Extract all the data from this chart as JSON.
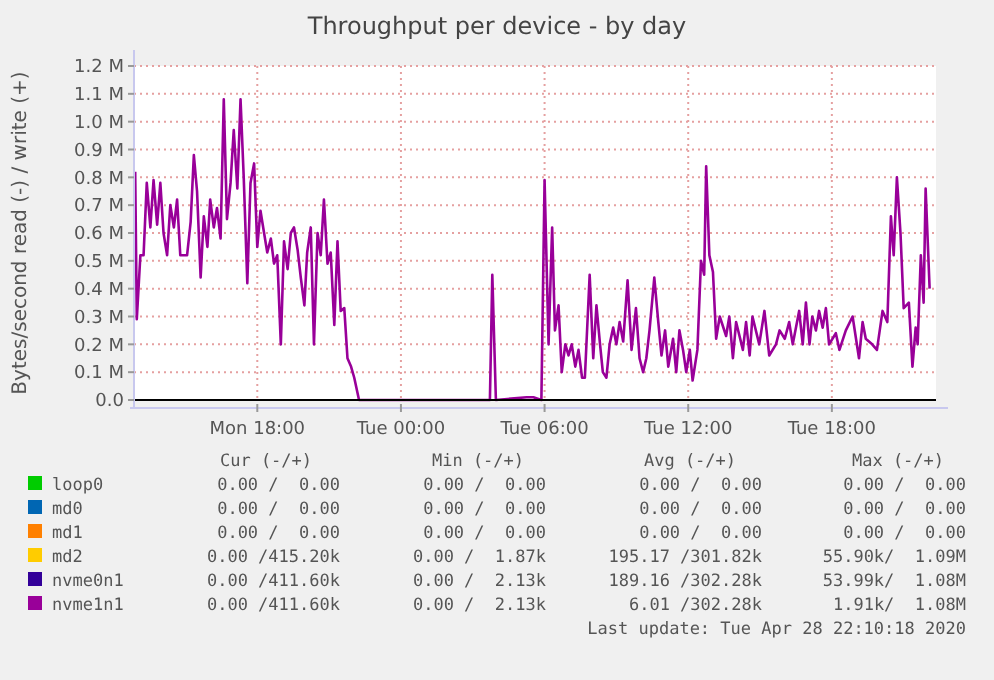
{
  "chart_data": {
    "type": "line",
    "title": "Throughput per device - by day",
    "ylabel": "Bytes/second read (-) / write (+)",
    "xlim": [
      "2020-04-27T12:51",
      "2020-04-28T22:21"
    ],
    "ylim": [
      0,
      1200000
    ],
    "xticks": [
      {
        "value": "2020-04-27T18:00",
        "label": "Mon 18:00"
      },
      {
        "value": "2020-04-28T00:00",
        "label": "Tue 00:00"
      },
      {
        "value": "2020-04-28T06:00",
        "label": "Tue 06:00"
      },
      {
        "value": "2020-04-28T12:00",
        "label": "Tue 12:00"
      },
      {
        "value": "2020-04-28T18:00",
        "label": "Tue 18:00"
      }
    ],
    "yticks": [
      {
        "value": 0,
        "label": "0.0"
      },
      {
        "value": 100000,
        "label": "0.1 M"
      },
      {
        "value": 200000,
        "label": "0.2 M"
      },
      {
        "value": 300000,
        "label": "0.3 M"
      },
      {
        "value": 400000,
        "label": "0.4 M"
      },
      {
        "value": 500000,
        "label": "0.5 M"
      },
      {
        "value": 600000,
        "label": "0.6 M"
      },
      {
        "value": 700000,
        "label": "0.7 M"
      },
      {
        "value": 800000,
        "label": "0.8 M"
      },
      {
        "value": 900000,
        "label": "0.9 M"
      },
      {
        "value": 1000000,
        "label": "1.0 M"
      },
      {
        "value": 1100000,
        "label": "1.1 M"
      },
      {
        "value": 1200000,
        "label": "1.2 M"
      }
    ],
    "grid": true,
    "legend": "bottom",
    "marker": "none",
    "line_style": "solid",
    "series": [
      {
        "name": "loop0",
        "color": "#00cc00"
      },
      {
        "name": "md0",
        "color": "#0066b3"
      },
      {
        "name": "md1",
        "color": "#ff8000"
      },
      {
        "name": "md2",
        "color": "#ffcc00"
      },
      {
        "name": "nvme0n1",
        "color": "#330099"
      },
      {
        "name": "nvme1n1",
        "color": "#990099",
        "x": [
          "2020-04-27T12:54",
          "2020-04-27T12:58",
          "2020-04-27T13:07",
          "2020-04-27T13:15",
          "2020-04-27T13:23",
          "2020-04-27T13:32",
          "2020-04-27T13:40",
          "2020-04-27T13:49",
          "2020-04-27T13:57",
          "2020-04-27T14:05",
          "2020-04-27T14:14",
          "2020-04-27T14:22",
          "2020-04-27T14:31",
          "2020-04-27T14:39",
          "2020-04-27T14:47",
          "2020-04-27T15:04",
          "2020-04-27T15:13",
          "2020-04-27T15:21",
          "2020-04-27T15:29",
          "2020-04-27T15:38",
          "2020-04-27T15:46",
          "2020-04-27T15:55",
          "2020-04-27T16:02",
          "2020-04-27T16:11",
          "2020-04-27T16:19",
          "2020-04-27T16:28",
          "2020-04-27T16:36",
          "2020-04-27T16:44",
          "2020-04-27T16:53",
          "2020-04-27T17:01",
          "2020-04-27T17:10",
          "2020-04-27T17:18",
          "2020-04-27T17:26",
          "2020-04-27T17:35",
          "2020-04-27T17:43",
          "2020-04-27T17:52",
          "2020-04-27T18:00",
          "2020-04-27T18:08",
          "2020-04-27T18:17",
          "2020-04-27T18:25",
          "2020-04-27T18:34",
          "2020-04-27T18:42",
          "2020-04-27T18:50",
          "2020-04-27T18:59",
          "2020-04-27T19:07",
          "2020-04-27T19:16",
          "2020-04-27T19:24",
          "2020-04-27T19:32",
          "2020-04-27T19:41",
          "2020-04-27T19:49",
          "2020-04-27T19:58",
          "2020-04-27T20:05",
          "2020-04-27T20:14",
          "2020-04-27T20:22",
          "2020-04-27T20:31",
          "2020-04-27T20:39",
          "2020-04-27T20:47",
          "2020-04-27T20:56",
          "2020-04-27T21:04",
          "2020-04-27T21:13",
          "2020-04-27T21:21",
          "2020-04-27T21:29",
          "2020-04-27T21:38",
          "2020-04-27T21:46",
          "2020-04-27T21:55",
          "2020-04-27T22:03",
          "2020-04-27T22:15",
          "2020-04-28T03:43",
          "2020-04-28T03:49",
          "2020-04-28T03:58",
          "2020-04-28T05:15",
          "2020-04-28T05:32",
          "2020-04-28T05:52",
          "2020-04-28T06:00",
          "2020-04-28T06:10",
          "2020-04-28T06:19",
          "2020-04-28T06:26",
          "2020-04-28T06:35",
          "2020-04-28T06:43",
          "2020-04-28T06:52",
          "2020-04-28T07:00",
          "2020-04-28T07:08",
          "2020-04-28T07:17",
          "2020-04-28T07:25",
          "2020-04-28T07:34",
          "2020-04-28T07:41",
          "2020-04-28T07:53",
          "2020-04-28T08:02",
          "2020-04-28T08:10",
          "2020-04-28T08:19",
          "2020-04-28T08:26",
          "2020-04-28T08:35",
          "2020-04-28T08:43",
          "2020-04-28T08:52",
          "2020-04-28T09:00",
          "2020-04-28T09:08",
          "2020-04-28T09:17",
          "2020-04-28T09:28",
          "2020-04-28T09:38",
          "2020-04-28T09:49",
          "2020-04-28T09:58",
          "2020-04-28T10:07",
          "2020-04-28T10:15",
          "2020-04-28T10:23",
          "2020-04-28T10:35",
          "2020-04-28T10:45",
          "2020-04-28T10:53",
          "2020-04-28T11:02",
          "2020-04-28T11:10",
          "2020-04-28T11:22",
          "2020-04-28T11:30",
          "2020-04-28T11:38",
          "2020-04-28T11:47",
          "2020-04-28T11:55",
          "2020-04-28T12:04",
          "2020-04-28T12:11",
          "2020-04-28T12:23",
          "2020-04-28T12:32",
          "2020-04-28T12:40",
          "2020-04-28T12:45",
          "2020-04-28T12:53",
          "2020-04-28T13:02",
          "2020-04-28T13:10",
          "2020-04-28T13:19",
          "2020-04-28T13:35",
          "2020-04-28T13:43",
          "2020-04-28T13:52",
          "2020-04-28T14:00",
          "2020-04-28T14:17",
          "2020-04-28T14:25",
          "2020-04-28T14:34",
          "2020-04-28T14:41",
          "2020-04-28T14:58",
          "2020-04-28T15:11",
          "2020-04-28T15:23",
          "2020-04-28T15:40",
          "2020-04-28T15:49",
          "2020-04-28T16:02",
          "2020-04-28T16:13",
          "2020-04-28T16:22",
          "2020-04-28T16:38",
          "2020-04-28T16:47",
          "2020-04-28T16:55",
          "2020-04-28T17:04",
          "2020-04-28T17:11",
          "2020-04-28T17:20",
          "2020-04-28T17:28",
          "2020-04-28T17:37",
          "2020-04-28T17:45",
          "2020-04-28T17:53",
          "2020-04-28T18:10",
          "2020-04-28T18:19",
          "2020-04-28T18:35",
          "2020-04-28T18:52",
          "2020-04-28T19:08",
          "2020-04-28T19:17",
          "2020-04-28T19:25",
          "2020-04-28T19:41",
          "2020-04-28T19:53",
          "2020-04-28T20:07",
          "2020-04-28T20:19",
          "2020-04-28T20:28",
          "2020-04-28T20:35",
          "2020-04-28T20:43",
          "2020-04-28T20:52",
          "2020-04-28T21:00",
          "2020-04-28T21:13",
          "2020-04-28T21:22",
          "2020-04-28T21:30",
          "2020-04-28T21:35",
          "2020-04-28T21:43",
          "2020-04-28T21:50",
          "2020-04-28T21:55",
          "2020-04-28T22:05"
        ],
        "values": [
          820000,
          290000,
          520000,
          520000,
          780000,
          620000,
          790000,
          630000,
          780000,
          600000,
          520000,
          700000,
          620000,
          720000,
          520000,
          520000,
          640000,
          880000,
          750000,
          440000,
          660000,
          550000,
          720000,
          620000,
          690000,
          580000,
          1080000,
          650000,
          780000,
          970000,
          760000,
          1080000,
          800000,
          420000,
          780000,
          850000,
          550000,
          680000,
          600000,
          530000,
          580000,
          490000,
          520000,
          200000,
          570000,
          470000,
          600000,
          620000,
          540000,
          440000,
          340000,
          530000,
          620000,
          200000,
          600000,
          520000,
          720000,
          490000,
          530000,
          270000,
          570000,
          320000,
          330000,
          150000,
          120000,
          80000,
          0,
          0,
          450000,
          0,
          10000,
          10000,
          0,
          790000,
          200000,
          620000,
          250000,
          340000,
          100000,
          200000,
          160000,
          200000,
          120000,
          180000,
          80000,
          80000,
          450000,
          150000,
          340000,
          200000,
          100000,
          80000,
          200000,
          260000,
          200000,
          280000,
          210000,
          430000,
          180000,
          330000,
          150000,
          100000,
          150000,
          250000,
          440000,
          280000,
          160000,
          250000,
          120000,
          220000,
          100000,
          250000,
          180000,
          100000,
          180000,
          70000,
          180000,
          500000,
          450000,
          840000,
          520000,
          460000,
          220000,
          300000,
          230000,
          300000,
          150000,
          280000,
          180000,
          280000,
          160000,
          300000,
          200000,
          320000,
          160000,
          200000,
          250000,
          220000,
          280000,
          200000,
          320000,
          200000,
          350000,
          200000,
          300000,
          250000,
          320000,
          260000,
          330000,
          200000,
          240000,
          180000,
          250000,
          300000,
          150000,
          280000,
          220000,
          200000,
          180000,
          320000,
          280000,
          660000,
          520000,
          800000,
          600000,
          330000,
          350000,
          120000,
          260000,
          200000,
          520000,
          350000,
          760000,
          400000
        ]
      }
    ],
    "annotations": [
      "Cur (-/+)",
      "Min (-/+)",
      "Avg (-/+)",
      "Max (-/+)",
      "0.00 /  0.00",
      "0.00 /  0.00",
      "0.00 /  0.00",
      "0.00 /  0.00",
      "0.00 /  0.00",
      "0.00 /  0.00",
      "0.00 /  0.00",
      "0.00 /  0.00",
      "0.00 /  0.00",
      "0.00 /  0.00",
      "0.00 /  0.00",
      "0.00 /  0.00",
      "0.00 /415.20k",
      "0.00 /  1.87k",
      "195.17 /301.82k",
      "55.90k/  1.09M",
      "0.00 /411.60k",
      "0.00 /  2.13k",
      "189.16 /302.28k",
      "53.99k/  1.08M",
      "0.00 /411.60k",
      "0.00 /  2.13k",
      "6.01 /302.28k",
      "1.91k/  1.08M",
      "Last update: Tue Apr 28 22:10:18 2020"
    ]
  }
}
